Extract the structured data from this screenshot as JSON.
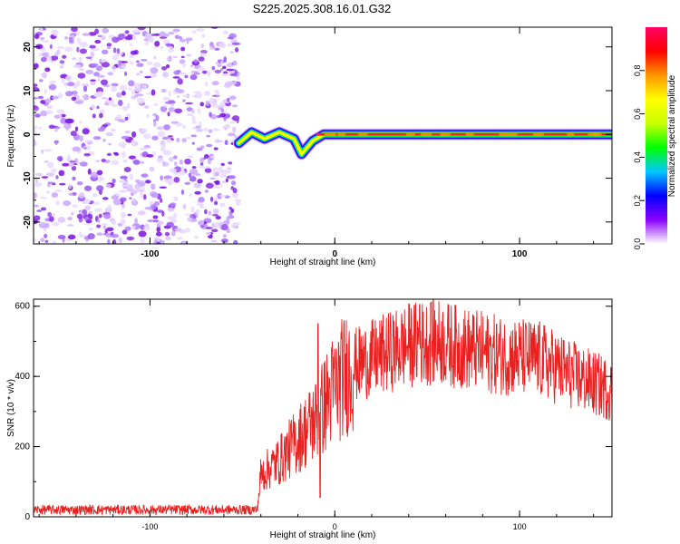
{
  "figure_title": "S225.2025.308.16.01.G32",
  "chart_data": [
    {
      "type": "heatmap",
      "title": "S225.2025.308.16.01.G32",
      "xlabel": "Height of straight line (km)",
      "ylabel": "Frequency (Hz)",
      "xlim": [
        -163,
        150
      ],
      "ylim": [
        -25,
        24.5
      ],
      "x_ticks": [
        -100,
        0,
        100
      ],
      "y_ticks": [
        -20,
        -10,
        0,
        10,
        20
      ],
      "colorbar": {
        "label": "Normalized spectral amplitude",
        "range": [
          0,
          1
        ],
        "ticks": [
          0.0,
          0.2,
          0.4,
          0.6,
          0.8
        ],
        "colors": [
          "#ffffff",
          "#8b00ff",
          "#0000ff",
          "#00c8ff",
          "#00ff00",
          "#c8ff00",
          "#ffff00",
          "#ff9600",
          "#ff0000",
          "#ff0066"
        ]
      },
      "noise_region_x": [
        -163,
        -52
      ],
      "signal": [
        {
          "x": -52,
          "freq": -2.0
        },
        {
          "x": -45,
          "freq": 0.5
        },
        {
          "x": -38,
          "freq": -1.0
        },
        {
          "x": -30,
          "freq": 0.5
        },
        {
          "x": -22,
          "freq": -1.0
        },
        {
          "x": -18,
          "freq": -4.5
        },
        {
          "x": -12,
          "freq": -1.5
        },
        {
          "x": -6,
          "freq": 0.0
        },
        {
          "x": 150,
          "freq": 0.0
        }
      ],
      "signal_core_x": [
        -10,
        150
      ]
    },
    {
      "type": "line",
      "title": "",
      "xlabel": "Height of straight line (km)",
      "ylabel": "SNR (10 * v/v)",
      "xlim": [
        -163,
        150
      ],
      "ylim": [
        0,
        620
      ],
      "x_ticks": [
        -100,
        0,
        100
      ],
      "y_ticks": [
        0,
        200,
        400,
        600
      ],
      "color": "#e8201e",
      "trend": [
        {
          "x": -163,
          "y": 20
        },
        {
          "x": -42,
          "y": 20
        },
        {
          "x": -40,
          "y": 120
        },
        {
          "x": -30,
          "y": 160
        },
        {
          "x": -20,
          "y": 220
        },
        {
          "x": -10,
          "y": 280
        },
        {
          "x": 0,
          "y": 370
        },
        {
          "x": 10,
          "y": 430
        },
        {
          "x": 25,
          "y": 460
        },
        {
          "x": 40,
          "y": 490
        },
        {
          "x": 55,
          "y": 500
        },
        {
          "x": 70,
          "y": 480
        },
        {
          "x": 90,
          "y": 460
        },
        {
          "x": 110,
          "y": 450
        },
        {
          "x": 130,
          "y": 400
        },
        {
          "x": 150,
          "y": 360
        }
      ],
      "peaks": [
        {
          "x": -9,
          "y": 550
        },
        {
          "x": -8,
          "y": 55
        },
        {
          "x": 52,
          "y": 610
        },
        {
          "x": 46,
          "y": 605
        }
      ]
    }
  ]
}
